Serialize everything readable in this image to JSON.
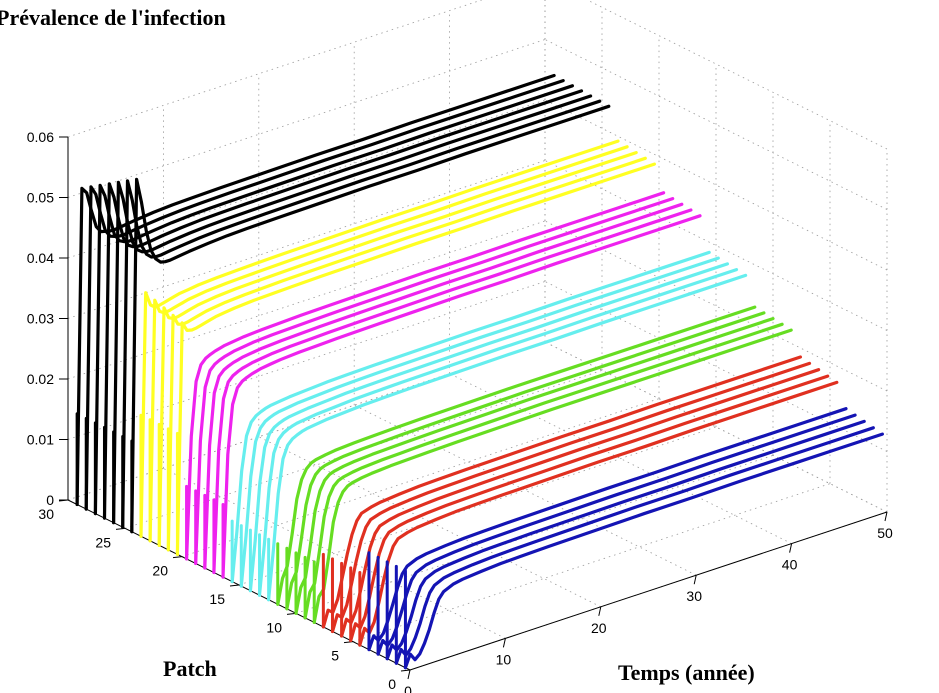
{
  "chart_data": {
    "type": "line",
    "title": "Prévalence de l'infection",
    "xlabel": "Temps (année)",
    "ylabel": "Patch",
    "zlabel": "",
    "xlim": [
      0,
      50
    ],
    "ylim": [
      0,
      30
    ],
    "zlim": [
      0,
      0.06
    ],
    "x_ticks": [
      "0",
      "10",
      "20",
      "30",
      "40",
      "50"
    ],
    "y_ticks": [
      "0",
      "5",
      "10",
      "15",
      "20",
      "25",
      "30"
    ],
    "z_ticks": [
      "0",
      "0.01",
      "0.02",
      "0.03",
      "0.04",
      "0.05",
      "0.06"
    ],
    "grid": true,
    "x_values": [
      0,
      0.5,
      1,
      1.5,
      2,
      2.5,
      3,
      3.5,
      4,
      5,
      6,
      8,
      10,
      12,
      15,
      20,
      25,
      30,
      35,
      40,
      45,
      50
    ],
    "groups": [
      {
        "color": "#1414b4",
        "patches": [
          1,
          2,
          3,
          4,
          5
        ],
        "spike_peak": 0.016
      },
      {
        "color": "#e03020",
        "patches": [
          6,
          7,
          8,
          9,
          10
        ],
        "spike_peak": 0.012
      },
      {
        "color": "#66dd22",
        "patches": [
          11,
          12,
          13,
          14,
          15
        ],
        "spike_peak": 0.01
      },
      {
        "color": "#66eeee",
        "patches": [
          16,
          17,
          18,
          19,
          20
        ],
        "spike_peak": 0.01
      },
      {
        "color": "#ee22ee",
        "patches": [
          21,
          22,
          23,
          24,
          25
        ],
        "spike_peak": 0.012
      },
      {
        "color": "#ffff22",
        "patches": [
          26,
          27,
          28,
          29,
          30
        ],
        "spike_peak": 0.02
      },
      {
        "color": "#000000",
        "patches": [
          31,
          32,
          33,
          34,
          35,
          36,
          37
        ],
        "spike_peak": 0.015
      }
    ],
    "series": [
      {
        "patch": 1,
        "values": [
          0.016,
          0.002,
          0.0008,
          0.0015,
          0.003,
          0.005,
          0.0075,
          0.0095,
          0.0105,
          0.0112,
          0.0115,
          0.0118,
          0.012,
          0.0121,
          0.0122,
          0.0123,
          0.0124,
          0.0124,
          0.0125,
          0.0125,
          0.0125,
          0.0125
        ]
      },
      {
        "patch": 2,
        "values": [
          0.016,
          0.002,
          0.0008,
          0.0016,
          0.0032,
          0.0053,
          0.0078,
          0.0098,
          0.0108,
          0.0115,
          0.0118,
          0.0121,
          0.0123,
          0.0124,
          0.0125,
          0.0126,
          0.0127,
          0.0127,
          0.0128,
          0.0128,
          0.0128,
          0.0128
        ]
      },
      {
        "patch": 3,
        "values": [
          0.016,
          0.002,
          0.0009,
          0.0017,
          0.0034,
          0.0056,
          0.0081,
          0.0101,
          0.0111,
          0.0118,
          0.0121,
          0.0124,
          0.0126,
          0.0127,
          0.0128,
          0.0129,
          0.013,
          0.013,
          0.0131,
          0.0131,
          0.0131,
          0.0131
        ]
      },
      {
        "patch": 4,
        "values": [
          0.016,
          0.002,
          0.0009,
          0.0018,
          0.0036,
          0.0059,
          0.0084,
          0.0104,
          0.0114,
          0.0121,
          0.0124,
          0.0127,
          0.0129,
          0.013,
          0.0131,
          0.0132,
          0.0133,
          0.0133,
          0.0134,
          0.0134,
          0.0134,
          0.0134
        ]
      },
      {
        "patch": 5,
        "values": [
          0.016,
          0.002,
          0.001,
          0.0019,
          0.0038,
          0.0062,
          0.0087,
          0.0107,
          0.0117,
          0.0124,
          0.0127,
          0.013,
          0.0132,
          0.0133,
          0.0134,
          0.0135,
          0.0136,
          0.0136,
          0.0137,
          0.0137,
          0.0137,
          0.0137
        ]
      },
      {
        "patch": 6,
        "values": [
          0.012,
          0.0025,
          0.0015,
          0.003,
          0.006,
          0.0095,
          0.0125,
          0.0145,
          0.0155,
          0.016,
          0.0163,
          0.0166,
          0.0168,
          0.0169,
          0.017,
          0.0171,
          0.0172,
          0.0172,
          0.0173,
          0.0173,
          0.0173,
          0.0173
        ]
      },
      {
        "patch": 7,
        "values": [
          0.012,
          0.0025,
          0.0016,
          0.0032,
          0.0063,
          0.0098,
          0.0128,
          0.0148,
          0.0158,
          0.0163,
          0.0166,
          0.0169,
          0.0171,
          0.0172,
          0.0173,
          0.0174,
          0.0175,
          0.0175,
          0.0176,
          0.0176,
          0.0176,
          0.0176
        ]
      },
      {
        "patch": 8,
        "values": [
          0.012,
          0.0025,
          0.0017,
          0.0034,
          0.0066,
          0.0101,
          0.0131,
          0.0151,
          0.0161,
          0.0166,
          0.0169,
          0.0172,
          0.0174,
          0.0175,
          0.0176,
          0.0177,
          0.0178,
          0.0178,
          0.0179,
          0.0179,
          0.0179,
          0.0179
        ]
      },
      {
        "patch": 9,
        "values": [
          0.012,
          0.0025,
          0.0018,
          0.0036,
          0.0069,
          0.0104,
          0.0134,
          0.0154,
          0.0164,
          0.0169,
          0.0172,
          0.0175,
          0.0177,
          0.0178,
          0.0179,
          0.018,
          0.0181,
          0.0181,
          0.0182,
          0.0182,
          0.0182,
          0.0182
        ]
      },
      {
        "patch": 10,
        "values": [
          0.012,
          0.0025,
          0.0019,
          0.0038,
          0.0072,
          0.0107,
          0.0137,
          0.0157,
          0.0167,
          0.0172,
          0.0175,
          0.0178,
          0.018,
          0.0181,
          0.0182,
          0.0183,
          0.0184,
          0.0184,
          0.0185,
          0.0185,
          0.0185,
          0.0185
        ]
      },
      {
        "patch": 11,
        "values": [
          0.01,
          0.004,
          0.005,
          0.01,
          0.0155,
          0.0185,
          0.02,
          0.0207,
          0.021,
          0.0213,
          0.0215,
          0.0217,
          0.0218,
          0.0219,
          0.022,
          0.0221,
          0.0222,
          0.0222,
          0.0222,
          0.0222,
          0.0222,
          0.0222
        ]
      },
      {
        "patch": 12,
        "values": [
          0.01,
          0.004,
          0.0052,
          0.0102,
          0.0157,
          0.0187,
          0.0202,
          0.0209,
          0.0212,
          0.0215,
          0.0217,
          0.0219,
          0.022,
          0.0221,
          0.0222,
          0.0223,
          0.0224,
          0.0224,
          0.0224,
          0.0224,
          0.0224,
          0.0224
        ]
      },
      {
        "patch": 13,
        "values": [
          0.01,
          0.004,
          0.0054,
          0.0104,
          0.0159,
          0.0189,
          0.0204,
          0.0211,
          0.0214,
          0.0217,
          0.0219,
          0.0221,
          0.0222,
          0.0223,
          0.0224,
          0.0225,
          0.0226,
          0.0226,
          0.0226,
          0.0226,
          0.0226,
          0.0226
        ]
      },
      {
        "patch": 14,
        "values": [
          0.01,
          0.004,
          0.0056,
          0.0106,
          0.0161,
          0.0191,
          0.0206,
          0.0213,
          0.0216,
          0.0219,
          0.0221,
          0.0223,
          0.0224,
          0.0225,
          0.0226,
          0.0227,
          0.0228,
          0.0228,
          0.0228,
          0.0228,
          0.0228,
          0.0228
        ]
      },
      {
        "patch": 15,
        "values": [
          0.01,
          0.004,
          0.0058,
          0.0108,
          0.0163,
          0.0193,
          0.0208,
          0.0215,
          0.0218,
          0.0221,
          0.0223,
          0.0225,
          0.0226,
          0.0227,
          0.0228,
          0.0229,
          0.023,
          0.023,
          0.023,
          0.023,
          0.023,
          0.023
        ]
      },
      {
        "patch": 16,
        "values": [
          0.01,
          0.008,
          0.017,
          0.0225,
          0.0245,
          0.0253,
          0.0257,
          0.026,
          0.0262,
          0.0264,
          0.0266,
          0.0268,
          0.027,
          0.0271,
          0.0272,
          0.0273,
          0.0274,
          0.0274,
          0.0275,
          0.0275,
          0.0275,
          0.0275
        ]
      },
      {
        "patch": 17,
        "values": [
          0.01,
          0.008,
          0.0172,
          0.0227,
          0.0247,
          0.0255,
          0.0259,
          0.0262,
          0.0264,
          0.0266,
          0.0268,
          0.027,
          0.0272,
          0.0273,
          0.0274,
          0.0275,
          0.0276,
          0.0276,
          0.0277,
          0.0277,
          0.0277,
          0.0277
        ]
      },
      {
        "patch": 18,
        "values": [
          0.01,
          0.008,
          0.0174,
          0.0229,
          0.0249,
          0.0257,
          0.0261,
          0.0264,
          0.0266,
          0.0268,
          0.027,
          0.0272,
          0.0274,
          0.0275,
          0.0276,
          0.0277,
          0.0278,
          0.0278,
          0.0279,
          0.0279,
          0.0279,
          0.0279
        ]
      },
      {
        "patch": 19,
        "values": [
          0.01,
          0.008,
          0.0176,
          0.0231,
          0.0251,
          0.0259,
          0.0263,
          0.0266,
          0.0268,
          0.027,
          0.0272,
          0.0274,
          0.0276,
          0.0277,
          0.0278,
          0.0279,
          0.028,
          0.028,
          0.0281,
          0.0281,
          0.0281,
          0.0281
        ]
      },
      {
        "patch": 20,
        "values": [
          0.01,
          0.008,
          0.0178,
          0.0233,
          0.0253,
          0.0261,
          0.0265,
          0.0268,
          0.027,
          0.0272,
          0.0274,
          0.0276,
          0.0278,
          0.0279,
          0.028,
          0.0281,
          0.0282,
          0.0282,
          0.0283,
          0.0283,
          0.0283,
          0.0283
        ]
      },
      {
        "patch": 21,
        "values": [
          0.012,
          0.02,
          0.028,
          0.0305,
          0.0313,
          0.0317,
          0.032,
          0.0322,
          0.0324,
          0.0326,
          0.0328,
          0.033,
          0.0331,
          0.0332,
          0.0333,
          0.0334,
          0.0335,
          0.0335,
          0.0336,
          0.0336,
          0.0336,
          0.0336
        ]
      },
      {
        "patch": 22,
        "values": [
          0.012,
          0.02,
          0.0282,
          0.0307,
          0.0315,
          0.0319,
          0.0322,
          0.0324,
          0.0326,
          0.0328,
          0.033,
          0.0332,
          0.0333,
          0.0334,
          0.0335,
          0.0336,
          0.0337,
          0.0337,
          0.0338,
          0.0338,
          0.0338,
          0.0338
        ]
      },
      {
        "patch": 23,
        "values": [
          0.012,
          0.02,
          0.0284,
          0.0309,
          0.0317,
          0.0321,
          0.0324,
          0.0326,
          0.0328,
          0.033,
          0.0332,
          0.0334,
          0.0335,
          0.0336,
          0.0337,
          0.0338,
          0.0339,
          0.0339,
          0.034,
          0.034,
          0.034,
          0.034
        ]
      },
      {
        "patch": 24,
        "values": [
          0.012,
          0.02,
          0.0286,
          0.0311,
          0.0319,
          0.0323,
          0.0326,
          0.0328,
          0.033,
          0.0332,
          0.0334,
          0.0336,
          0.0337,
          0.0338,
          0.0339,
          0.034,
          0.0341,
          0.0341,
          0.0342,
          0.0342,
          0.0342,
          0.0342
        ]
      },
      {
        "patch": 25,
        "values": [
          0.012,
          0.02,
          0.0288,
          0.0313,
          0.0321,
          0.0325,
          0.0328,
          0.033,
          0.0332,
          0.0334,
          0.0336,
          0.0338,
          0.0339,
          0.034,
          0.0341,
          0.0342,
          0.0343,
          0.0343,
          0.0344,
          0.0344,
          0.0344,
          0.0344
        ]
      },
      {
        "patch": 26,
        "values": [
          0.02,
          0.038,
          0.0365,
          0.0363,
          0.0364,
          0.0366,
          0.0368,
          0.037,
          0.0372,
          0.0374,
          0.0376,
          0.0378,
          0.0379,
          0.038,
          0.0381,
          0.0382,
          0.0383,
          0.0383,
          0.0384,
          0.0384,
          0.0384,
          0.0384
        ]
      },
      {
        "patch": 27,
        "values": [
          0.02,
          0.0385,
          0.0368,
          0.0365,
          0.0366,
          0.0368,
          0.037,
          0.0372,
          0.0374,
          0.0376,
          0.0378,
          0.038,
          0.0381,
          0.0382,
          0.0383,
          0.0384,
          0.0385,
          0.0385,
          0.0386,
          0.0386,
          0.0386,
          0.0386
        ]
      },
      {
        "patch": 28,
        "values": [
          0.02,
          0.039,
          0.0371,
          0.0367,
          0.0368,
          0.037,
          0.0372,
          0.0374,
          0.0376,
          0.0378,
          0.038,
          0.0382,
          0.0383,
          0.0384,
          0.0385,
          0.0386,
          0.0387,
          0.0387,
          0.0388,
          0.0388,
          0.0388,
          0.0388
        ]
      },
      {
        "patch": 29,
        "values": [
          0.02,
          0.0395,
          0.0374,
          0.0369,
          0.037,
          0.0372,
          0.0374,
          0.0376,
          0.0378,
          0.038,
          0.0382,
          0.0384,
          0.0385,
          0.0386,
          0.0387,
          0.0388,
          0.0389,
          0.0389,
          0.039,
          0.039,
          0.039,
          0.039
        ]
      },
      {
        "patch": 30,
        "values": [
          0.02,
          0.04,
          0.0377,
          0.0371,
          0.0372,
          0.0374,
          0.0376,
          0.0378,
          0.038,
          0.0382,
          0.0384,
          0.0386,
          0.0387,
          0.0388,
          0.0389,
          0.039,
          0.0391,
          0.0391,
          0.0392,
          0.0392,
          0.0392,
          0.0392
        ]
      },
      {
        "patch": 31,
        "values": [
          0.015,
          0.058,
          0.054,
          0.049,
          0.0455,
          0.0438,
          0.043,
          0.0428,
          0.0428,
          0.043,
          0.0432,
          0.0435,
          0.0437,
          0.0438,
          0.0439,
          0.044,
          0.0441,
          0.0441,
          0.0442,
          0.0442,
          0.0442,
          0.0442
        ]
      },
      {
        "patch": 32,
        "values": [
          0.015,
          0.057,
          0.0535,
          0.0488,
          0.0454,
          0.0438,
          0.0431,
          0.0429,
          0.0429,
          0.0431,
          0.0433,
          0.0436,
          0.0438,
          0.0439,
          0.044,
          0.0441,
          0.0442,
          0.0442,
          0.0443,
          0.0443,
          0.0443,
          0.0443
        ]
      },
      {
        "patch": 33,
        "values": [
          0.015,
          0.056,
          0.053,
          0.0486,
          0.0453,
          0.0438,
          0.0432,
          0.043,
          0.043,
          0.0432,
          0.0434,
          0.0437,
          0.0439,
          0.044,
          0.0441,
          0.0442,
          0.0443,
          0.0443,
          0.0444,
          0.0444,
          0.0444,
          0.0444
        ]
      },
      {
        "patch": 34,
        "values": [
          0.015,
          0.055,
          0.0525,
          0.0484,
          0.0452,
          0.0438,
          0.0433,
          0.0431,
          0.0431,
          0.0433,
          0.0435,
          0.0438,
          0.044,
          0.0441,
          0.0442,
          0.0443,
          0.0444,
          0.0444,
          0.0445,
          0.0445,
          0.0445,
          0.0445
        ]
      },
      {
        "patch": 35,
        "values": [
          0.015,
          0.054,
          0.052,
          0.0482,
          0.0451,
          0.0438,
          0.0434,
          0.0432,
          0.0432,
          0.0434,
          0.0436,
          0.0439,
          0.0441,
          0.0442,
          0.0443,
          0.0444,
          0.0445,
          0.0445,
          0.0446,
          0.0446,
          0.0446,
          0.0446
        ]
      },
      {
        "patch": 36,
        "values": [
          0.015,
          0.053,
          0.0515,
          0.048,
          0.045,
          0.0438,
          0.0435,
          0.0433,
          0.0433,
          0.0435,
          0.0437,
          0.044,
          0.0442,
          0.0443,
          0.0444,
          0.0445,
          0.0446,
          0.0446,
          0.0447,
          0.0447,
          0.0447,
          0.0447
        ]
      },
      {
        "patch": 37,
        "values": [
          0.015,
          0.052,
          0.051,
          0.0478,
          0.0449,
          0.0438,
          0.0436,
          0.0434,
          0.0434,
          0.0436,
          0.0438,
          0.0441,
          0.0443,
          0.0444,
          0.0445,
          0.0446,
          0.0447,
          0.0447,
          0.0448,
          0.0448,
          0.0448,
          0.0448
        ]
      }
    ]
  }
}
